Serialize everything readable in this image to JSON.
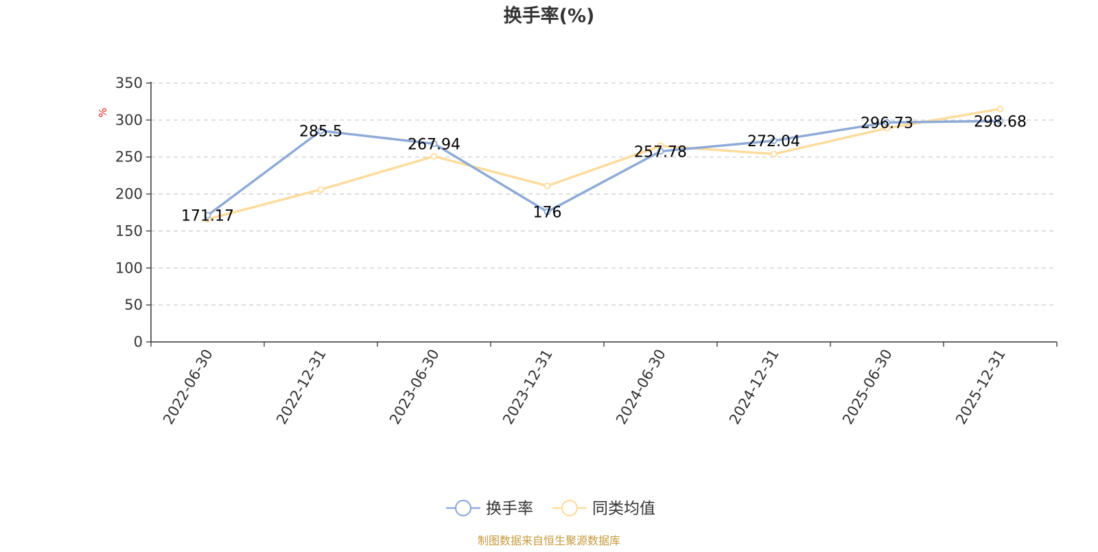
{
  "chart_data": {
    "type": "line",
    "title": "换手率(%)",
    "unit": "%",
    "categories": [
      "2022-06-30",
      "2022-12-31",
      "2023-06-30",
      "2023-12-31",
      "2024-06-30",
      "2024-12-31",
      "2025-06-30",
      "2025-12-31"
    ],
    "ylim": [
      0,
      350
    ],
    "yticks": [
      0,
      50,
      100,
      150,
      200,
      250,
      300,
      350
    ],
    "grid": true,
    "series": [
      {
        "name": "换手率",
        "color": "#8eabd7",
        "values": [
          171.17,
          285.5,
          267.94,
          176,
          257.78,
          272.04,
          296.73,
          298.68
        ],
        "data_labels": [
          "171.17",
          "285.5",
          "267.94",
          "176",
          "257.78",
          "272.04",
          "296.73",
          "298.68"
        ]
      },
      {
        "name": "同类均值",
        "color": "#fddc9b",
        "values": [
          166,
          206,
          251,
          211,
          265,
          254,
          289,
          315
        ]
      }
    ],
    "legend_position": "bottom-center",
    "source": "制图数据来自恒生聚源数据库",
    "source_color": "#c49a3c",
    "unit_color": "#e02020"
  }
}
